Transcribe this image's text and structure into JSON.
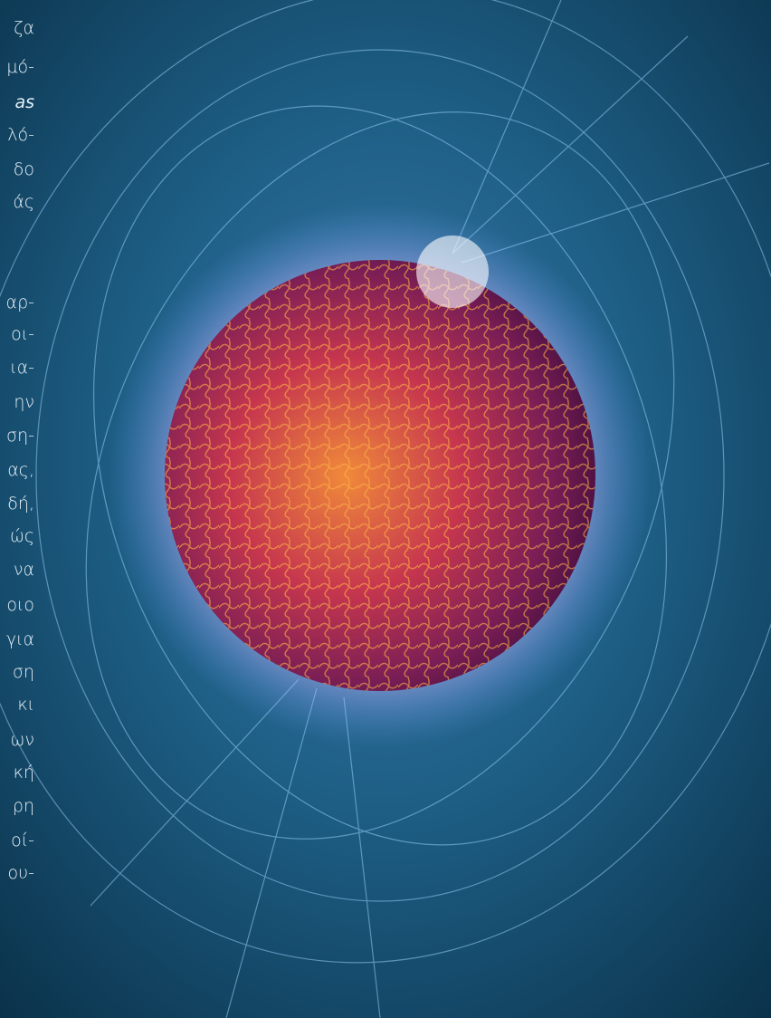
{
  "text_fragments": [
    {
      "text": "ζα",
      "bold": false
    },
    {
      "text": "μό-",
      "bold": false
    },
    {
      "text": "as",
      "bold": true
    },
    {
      "text": "λό-",
      "bold": false
    },
    {
      "text": "δο",
      "bold": false
    },
    {
      "text": "άς",
      "bold": false
    },
    {
      "text": "αρ-",
      "bold": false
    },
    {
      "text": "οι-",
      "bold": false
    },
    {
      "text": "ια-",
      "bold": false
    },
    {
      "text": "ην",
      "bold": false
    },
    {
      "text": "ση-",
      "bold": false
    },
    {
      "text": "ας,",
      "bold": false
    },
    {
      "text": "δή,",
      "bold": false
    },
    {
      "text": "ώς",
      "bold": false
    },
    {
      "text": "να",
      "bold": false
    },
    {
      "text": "οιο",
      "bold": false
    },
    {
      "text": "για",
      "bold": false
    },
    {
      "text": "ση",
      "bold": false
    },
    {
      "text": "κι",
      "bold": false
    },
    {
      "text": "ων",
      "bold": false
    },
    {
      "text": "κή",
      "bold": false
    },
    {
      "text": "ρη",
      "bold": false
    },
    {
      "text": "οί-",
      "bold": false
    },
    {
      "text": "ου-",
      "bold": false
    }
  ]
}
